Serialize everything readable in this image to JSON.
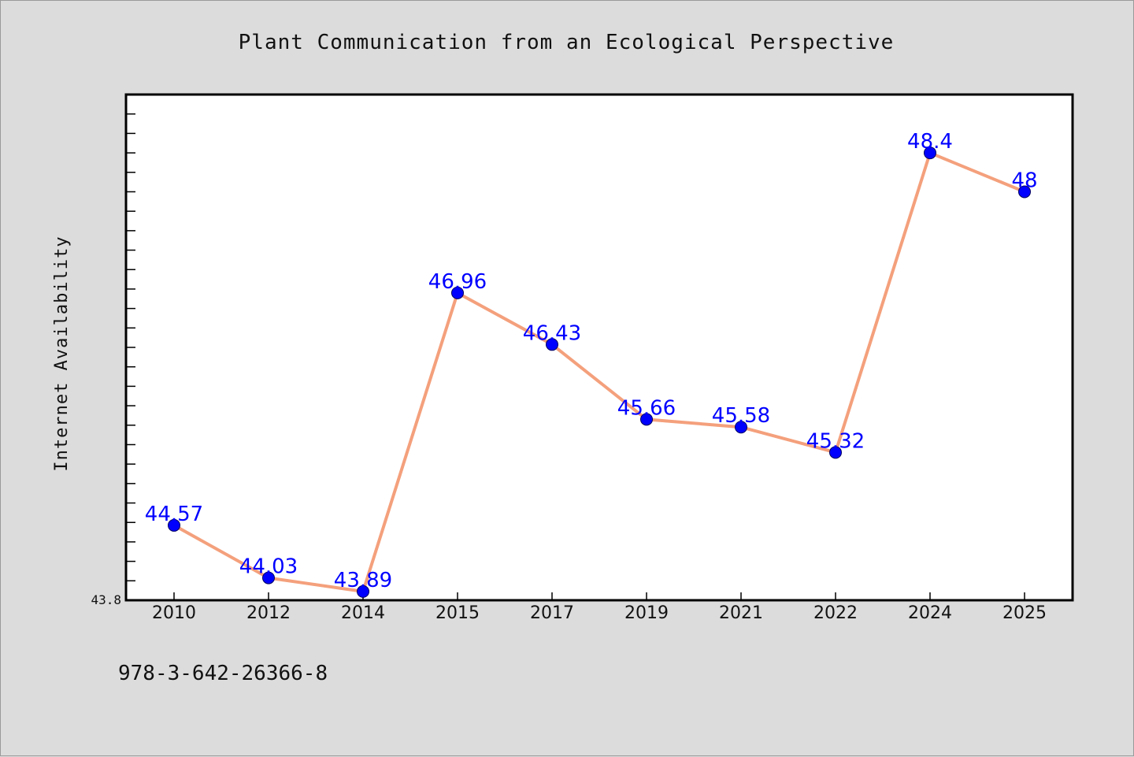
{
  "chart_data": {
    "type": "line",
    "title": "Plant Communication from an Ecological Perspective",
    "xlabel": "",
    "ylabel": "Internet Availability",
    "categories": [
      "2010",
      "2012",
      "2014",
      "2015",
      "2017",
      "2019",
      "2021",
      "2022",
      "2024",
      "2025"
    ],
    "series": [
      {
        "values": [
          44.57,
          44.03,
          43.89,
          46.96,
          46.43,
          45.66,
          45.58,
          45.32,
          48.4,
          48
        ],
        "data_labels": [
          "44.57",
          "44.03",
          "43.89",
          "46.96",
          "46.43",
          "45.66",
          "45.58",
          "45.32",
          "48.4",
          "48"
        ]
      }
    ],
    "ylim": [
      43.8,
      49.0
    ],
    "y_tick_labels": [
      "43.8"
    ],
    "grid": false,
    "legend": "none",
    "colors": {
      "line": "#f4a07c",
      "marker": "#0000ff",
      "data_label": "#0000ff",
      "background": "#dcdcdc",
      "plot_area": "#ffffff"
    }
  },
  "footer": {
    "isbn": "978-3-642-26366-8"
  }
}
